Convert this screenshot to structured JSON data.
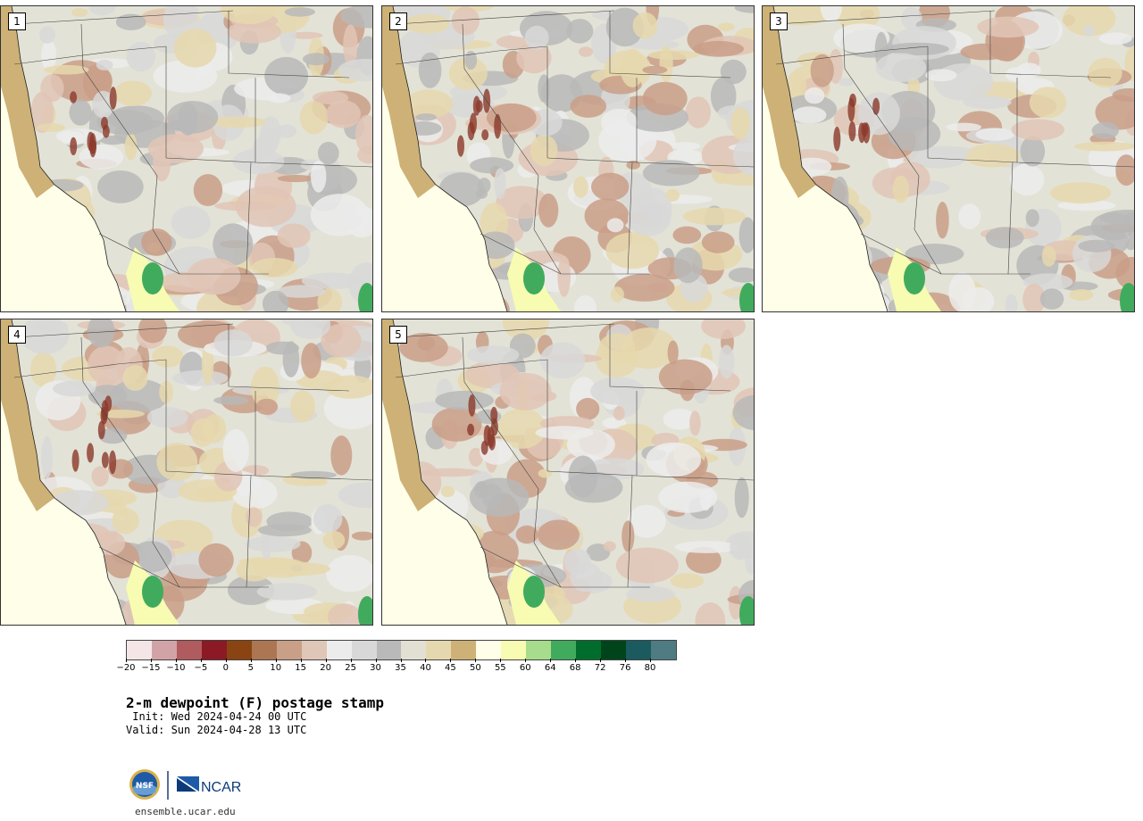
{
  "panels": [
    {
      "label": "1"
    },
    {
      "label": "2"
    },
    {
      "label": "3"
    },
    {
      "label": "4"
    },
    {
      "label": "5"
    }
  ],
  "colorbar": {
    "ticks": [
      "−20",
      "−15",
      "−10",
      "−5",
      "0",
      "5",
      "10",
      "15",
      "20",
      "25",
      "30",
      "35",
      "40",
      "45",
      "50",
      "55",
      "60",
      "64",
      "68",
      "72",
      "76",
      "80"
    ],
    "colors": [
      "#f4e6e6",
      "#d2a3a6",
      "#b05b5e",
      "#8b1a24",
      "#8a4412",
      "#ac7653",
      "#c99f88",
      "#e0c6b6",
      "#ececec",
      "#d8d8d8",
      "#b9b9b9",
      "#e1e0d3",
      "#e6d8ae",
      "#cdb176",
      "#fffee8",
      "#f7fcb2",
      "#a6dc8c",
      "#41ab5d",
      "#006d2c",
      "#00441b",
      "#1b5b5f",
      "#4f7c82"
    ]
  },
  "text": {
    "title": "2-m dewpoint (F) postage stamp",
    "init": " Init: Wed 2024-04-24 00 UTC",
    "valid": "Valid: Sun 2024-04-28 13 UTC",
    "url": "ensemble.ucar.edu"
  },
  "logos": {
    "nsf": "NSF",
    "ncar": "NCAR"
  }
}
